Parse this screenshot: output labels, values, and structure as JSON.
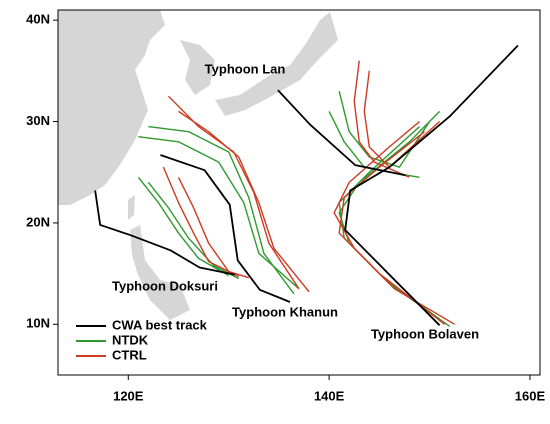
{
  "chart_data": {
    "type": "line",
    "xlim": [
      113,
      161
    ],
    "ylim": [
      5,
      41
    ],
    "xticks": [
      {
        "value": 120,
        "label": "120E"
      },
      {
        "value": 140,
        "label": "140E"
      },
      {
        "value": 160,
        "label": "160E"
      }
    ],
    "yticks": [
      {
        "value": 10,
        "label": "10N"
      },
      {
        "value": 20,
        "label": "20N"
      },
      {
        "value": 30,
        "label": "30N"
      },
      {
        "value": 40,
        "label": "40N"
      }
    ],
    "annotations": [
      "Typhoon Lan",
      "Typhoon Doksuri",
      "Typhoon Khanun",
      "Typhoon Bolaven"
    ],
    "series": [
      {
        "name": "NTDK",
        "color": "#2e9a2e",
        "tracks": [
          {
            "x": [
              121,
              123,
              125,
              127,
              130
            ],
            "y": [
              24.5,
              22,
              19,
              16.5,
              14.8
            ]
          },
          {
            "x": [
              122,
              124,
              126,
              128.5,
              131
            ],
            "y": [
              24,
              21.5,
              18.5,
              15.8,
              14.5
            ]
          },
          {
            "x": [
              121,
              125,
              129,
              131.5,
              133,
              137
            ],
            "y": [
              28.5,
              28,
              26,
              22,
              17,
              13.5
            ]
          },
          {
            "x": [
              122,
              126,
              130,
              132,
              133.5,
              136.5
            ],
            "y": [
              29.5,
              29,
              27,
              22.5,
              17,
              13
            ]
          },
          {
            "x": [
              141,
              142,
              144,
              147,
              150
            ],
            "y": [
              33,
              29,
              26.5,
              25.5,
              30
            ]
          },
          {
            "x": [
              140,
              141.5,
              143.5,
              146,
              149
            ],
            "y": [
              31,
              28,
              25.5,
              25,
              24.5
            ]
          },
          {
            "x": [
              152,
              146,
              142,
              141,
              143,
              148,
              151
            ],
            "y": [
              9.8,
              14,
              18,
              21,
              24,
              28,
              31
            ]
          },
          {
            "x": [
              151,
              145.5,
              141.5,
              141,
              144,
              149
            ],
            "y": [
              10.5,
              14.5,
              18.5,
              22,
              25,
              29.5
            ]
          }
        ]
      },
      {
        "name": "CTRL",
        "color": "#cc3b22",
        "tracks": [
          {
            "x": [
              123.5,
              125,
              126.5,
              128,
              131
            ],
            "y": [
              25.5,
              22,
              19,
              16.2,
              14.7
            ]
          },
          {
            "x": [
              125,
              126.5,
              128,
              130,
              132
            ],
            "y": [
              24.5,
              21.5,
              18,
              15.2,
              14.6
            ]
          },
          {
            "x": [
              124,
              127,
              130.5,
              132.5,
              134,
              137
            ],
            "y": [
              32.5,
              29.5,
              27,
              23,
              18,
              13.5
            ]
          },
          {
            "x": [
              125,
              128,
              131,
              133,
              134.5,
              138
            ],
            "y": [
              31,
              29,
              26.5,
              22,
              17.5,
              13.2
            ]
          },
          {
            "x": [
              143,
              142.5,
              143,
              144.5,
              148
            ],
            "y": [
              36,
              32,
              28,
              26,
              24.5
            ]
          },
          {
            "x": [
              144,
              143.5,
              144,
              146,
              151
            ],
            "y": [
              35,
              31,
              27.5,
              25.5,
              30
            ]
          },
          {
            "x": [
              152.5,
              146.5,
              142.5,
              140.5,
              142,
              146,
              149
            ],
            "y": [
              10,
              13.5,
              17.5,
              21,
              24,
              27.5,
              30
            ]
          },
          {
            "x": [
              151.5,
              145,
              141,
              141.5,
              145,
              149.5
            ],
            "y": [
              10,
              15,
              19,
              22.5,
              25.5,
              29
            ]
          }
        ]
      },
      {
        "name": "CWA best track",
        "color": "#000000",
        "tracks": [
          {
            "x": [
              116.7,
              117.2,
              120.2,
              124.2,
              127.1,
              130.6
            ],
            "y": [
              23.2,
              19.8,
              18.8,
              17.3,
              15.6,
              14.9
            ]
          },
          {
            "x": [
              123.2,
              127.6,
              130.1,
              130.9,
              133.1,
              136.1
            ],
            "y": [
              26.7,
              25.2,
              21.8,
              16.3,
              13.4,
              12.2
            ]
          },
          {
            "x": [
              147.6,
              142.6,
              138.1,
              134.9
            ],
            "y": [
              24.7,
              25.7,
              29.7,
              33.1
            ]
          },
          {
            "x": [
              151,
              141.6,
              142.1,
              146,
              152,
              158.8
            ],
            "y": [
              9.9,
              19.3,
              23.2,
              25.5,
              30.5,
              37.5
            ]
          }
        ]
      }
    ]
  }
}
